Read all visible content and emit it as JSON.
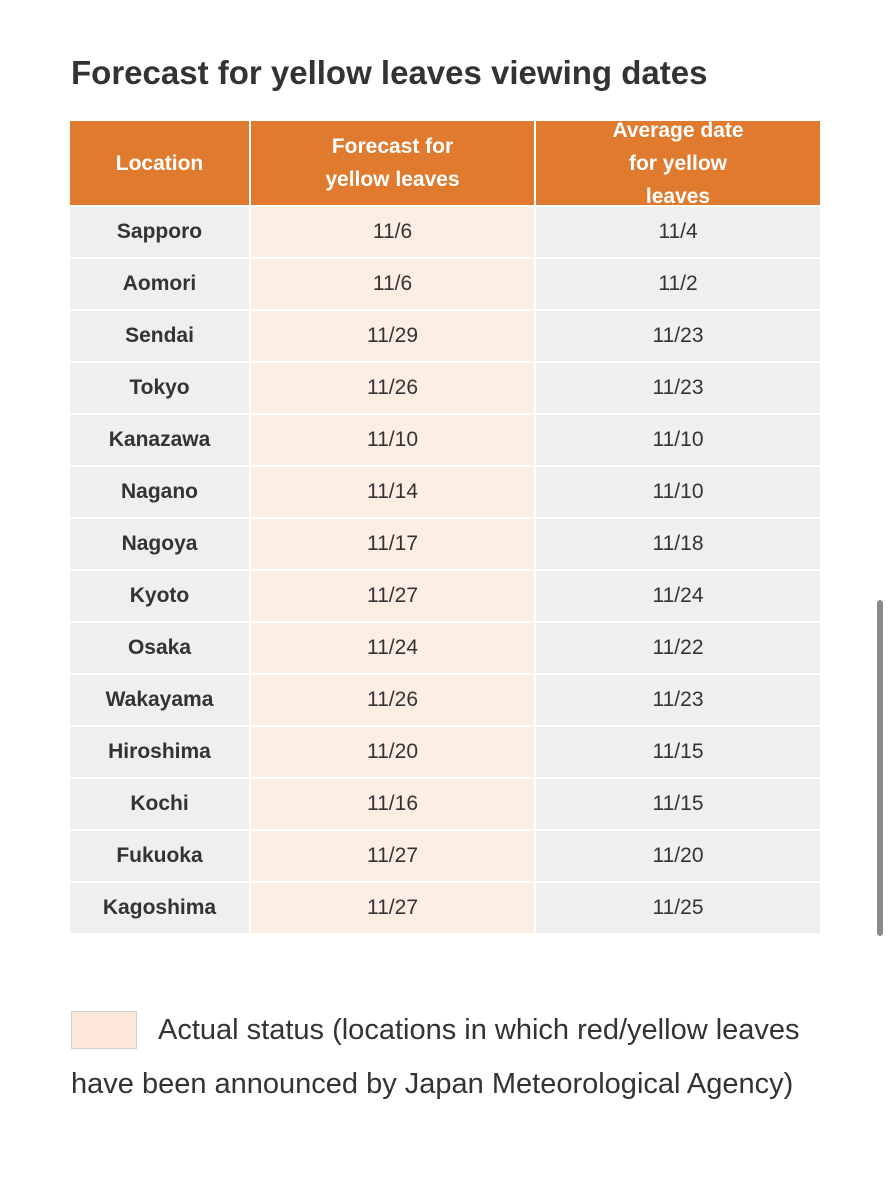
{
  "title": "Forecast for yellow leaves viewing dates",
  "table": {
    "headers": [
      "Location",
      "Forecast for yellow leaves",
      "Average date for yellow leaves"
    ],
    "rows": [
      [
        "Sapporo",
        "11/6",
        "11/4"
      ],
      [
        "Aomori",
        "11/6",
        "11/2"
      ],
      [
        "Sendai",
        "11/29",
        "11/23"
      ],
      [
        "Tokyo",
        "11/26",
        "11/23"
      ],
      [
        "Kanazawa",
        "11/10",
        "11/10"
      ],
      [
        "Nagano",
        "11/14",
        "11/10"
      ],
      [
        "Nagoya",
        "11/17",
        "11/18"
      ],
      [
        "Kyoto",
        "11/27",
        "11/24"
      ],
      [
        "Osaka",
        "11/24",
        "11/22"
      ],
      [
        "Wakayama",
        "11/26",
        "11/23"
      ],
      [
        "Hiroshima",
        "11/20",
        "11/15"
      ],
      [
        "Kochi",
        "11/16",
        "11/15"
      ],
      [
        "Fukuoka",
        "11/27",
        "11/20"
      ],
      [
        "Kagoshima",
        "11/27",
        "11/25"
      ]
    ]
  },
  "legend": {
    "label": "Actual status (locations in which red/yellow leaves have been announced by Japan Meteorological Agency)"
  }
}
